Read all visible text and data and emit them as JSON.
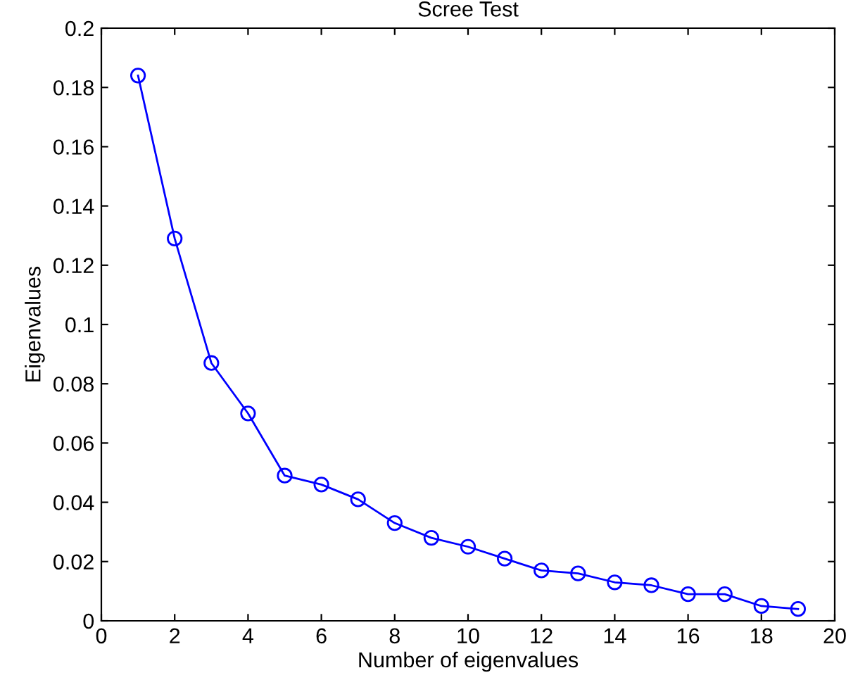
{
  "chart_data": {
    "type": "line",
    "title": "Scree Test",
    "xlabel": "Number of eigenvalues",
    "ylabel": "Eigenvalues",
    "x": [
      1,
      2,
      3,
      4,
      5,
      6,
      7,
      8,
      9,
      10,
      11,
      12,
      13,
      14,
      15,
      16,
      17,
      18,
      19
    ],
    "series": [
      {
        "color": "#0000ff",
        "values": [
          0.184,
          0.129,
          0.087,
          0.07,
          0.049,
          0.046,
          0.041,
          0.033,
          0.028,
          0.025,
          0.021,
          0.017,
          0.016,
          0.013,
          0.012,
          0.009,
          0.009,
          0.005,
          0.004
        ]
      }
    ],
    "xlim": [
      0,
      20
    ],
    "xticks": [
      0,
      2,
      4,
      6,
      8,
      10,
      12,
      14,
      16,
      18,
      20
    ],
    "ylim": [
      0,
      0.2
    ],
    "yticks": [
      0,
      0.02,
      0.04,
      0.06,
      0.08,
      {
        "value": 0.1,
        "label": "0.1"
      },
      0.12,
      0.14,
      0.16,
      0.18,
      {
        "value": 0.2,
        "label": "0.2"
      }
    ],
    "marker": "circle",
    "line_style": "solid",
    "grid": false,
    "legend": false
  }
}
